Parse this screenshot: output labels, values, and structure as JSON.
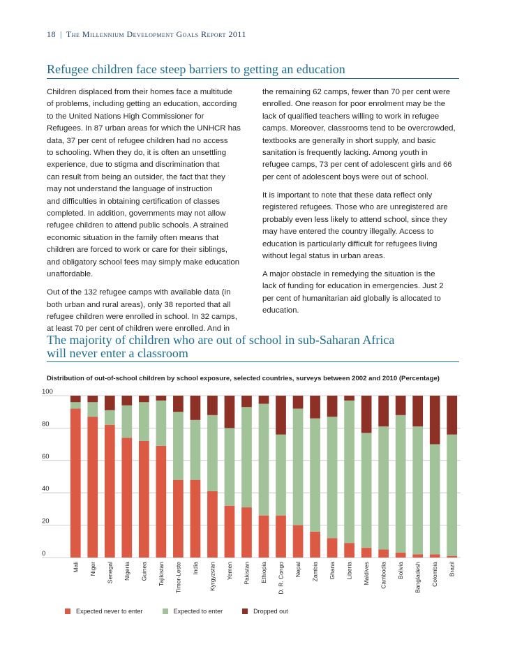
{
  "header": {
    "page_number": "18",
    "separator": "|",
    "report_title": "The Millennium Development Goals Report 2011"
  },
  "section1": {
    "title": "Refugee children face steep barriers to getting an education",
    "left_paragraphs": [
      "Children displaced from their homes face a multitude\nof problems, including getting an education, according\nto the United Nations High Commissioner for\nRefugees. In 87 urban areas for which the UNHCR has\ndata, 37 per cent of refugee children had no access\nto schooling. When they do, it is often an unsettling\nexperience, due to stigma and discrimination that\ncan result from being an outsider, the fact that they\nmay not understand the language of instruction\nand difficulties in obtaining certification of classes\ncompleted. In addition, governments may not allow\nrefugee children to attend public schools. A strained\neconomic situation in the family often means that\nchildren are forced to work or care for their siblings,\nand obligatory school fees may simply make education\nunaffordable.",
      "Out of the 132 refugee camps with available data (in\nboth urban and rural areas), only 38 reported that all\nrefugee children were enrolled in school. In 32 camps,\nat least 70 per cent of children were enrolled. And in"
    ],
    "right_paragraphs": [
      "the remaining 62 camps, fewer than 70 per cent were\nenrolled. One reason for poor enrolment may be the\nlack of qualified teachers willing to work in refugee\ncamps. Moreover, classrooms tend to be overcrowded,\ntextbooks are generally in short supply, and basic\nsanitation is frequently lacking. Among youth in\nrefugee camps, 73 per cent of adolescent girls and 66\nper cent of adolescent boys were out of school.",
      "It is important to note that these data reflect only\nregistered refugees. Those who are unregistered are\nprobably even less likely to attend school, since they\nmay have entered the country illegally. Access to\neducation is particularly difficult for refugees living\nwithout legal status in urban areas.",
      "A major obstacle in remedying the situation is the\nlack of funding for education in emergencies. Just 2\nper cent of humanitarian aid globally is allocated to\neducation."
    ]
  },
  "section2": {
    "title_line1": "The majority of children who are out of school in sub-Saharan Africa",
    "title_line2": "will never enter a classroom"
  },
  "chart_data": {
    "type": "bar",
    "stacked": true,
    "title": "Distribution of out-of-school children by school exposure, selected countries, surveys between 2002 and 2010 (Percentage)",
    "categories": [
      "Mali",
      "Niger",
      "Senegal",
      "Nigeria",
      "Guinea",
      "Tajikistan",
      "Timor-Leste",
      "India",
      "Kyrgyzstan",
      "Yemen",
      "Pakistan",
      "Ethiopia",
      "D. R. Congo",
      "Nepal",
      "Zambia",
      "Ghana",
      "Liberia",
      "Maldives",
      "Cambodia",
      "Bolivia",
      "Bangladesh",
      "Colombia",
      "Brazil"
    ],
    "ylim": [
      0,
      100
    ],
    "yticks": [
      0,
      20,
      40,
      60,
      80,
      100
    ],
    "grid": true,
    "legend_position": "bottom",
    "colors": {
      "never": "#dc5a44",
      "expected": "#a2c39a",
      "dropped": "#8d3127",
      "grid": "#bfbfbf"
    },
    "series": [
      {
        "name": "Expected never to enter",
        "values": [
          92,
          87,
          82,
          74,
          72,
          69,
          48,
          48,
          41,
          32,
          31,
          26,
          26,
          20,
          16,
          12,
          9,
          6,
          5,
          3,
          2,
          2,
          1
        ]
      },
      {
        "name": "Expected to enter",
        "values": [
          4,
          9,
          9,
          20,
          24,
          28,
          42,
          37,
          47,
          48,
          62,
          69,
          50,
          72,
          70,
          75,
          88,
          71,
          76,
          85,
          79,
          68,
          75
        ]
      },
      {
        "name": "Dropped out",
        "values": [
          4,
          4,
          9,
          6,
          4,
          3,
          10,
          15,
          12,
          20,
          7,
          5,
          24,
          8,
          14,
          13,
          3,
          23,
          19,
          12,
          19,
          30,
          24
        ]
      }
    ]
  }
}
